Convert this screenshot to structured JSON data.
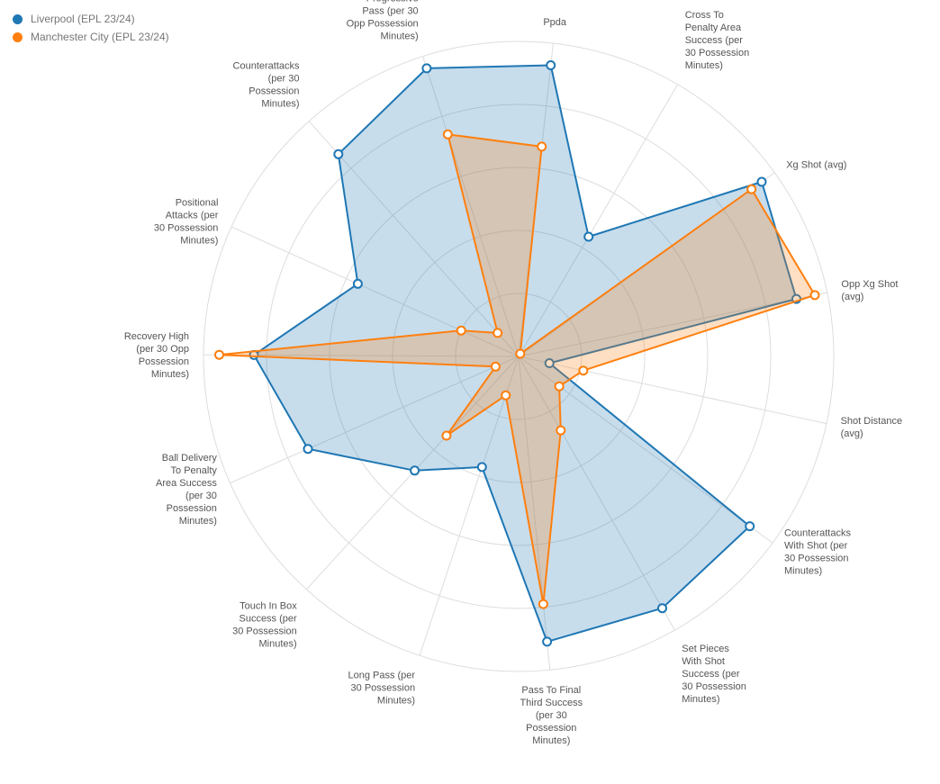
{
  "legend": {
    "items": [
      {
        "label": "Liverpool (EPL 23/24)",
        "color": "#1f77b4"
      },
      {
        "label": "Manchester City (EPL 23/24)",
        "color": "#ff7f0e"
      }
    ]
  },
  "chart_data": {
    "type": "radar",
    "title": "",
    "rlim": [
      0,
      100
    ],
    "grid": true,
    "legend_position": "top-left",
    "axes": [
      {
        "key": "ppda",
        "lines": [
          "Ppda"
        ]
      },
      {
        "key": "cross_to_penalty_area",
        "lines": [
          "Cross To",
          "Penalty Area",
          "Success (per",
          "30 Possession",
          "Minutes)"
        ]
      },
      {
        "key": "xg_shot",
        "lines": [
          "Xg Shot (avg)"
        ]
      },
      {
        "key": "opp_xg_shot",
        "lines": [
          "Opp Xg Shot",
          "(avg)"
        ]
      },
      {
        "key": "shot_distance",
        "lines": [
          "Shot Distance",
          "(avg)"
        ]
      },
      {
        "key": "counterattacks_with_shot",
        "lines": [
          "Counterattacks",
          "With Shot (per",
          "30 Possession",
          "Minutes)"
        ]
      },
      {
        "key": "set_pieces_with_shot",
        "lines": [
          "Set Pieces",
          "With Shot",
          "Success (per",
          "30 Possession",
          "Minutes)"
        ]
      },
      {
        "key": "pass_to_final_third",
        "lines": [
          "Pass To Final",
          "Third Success",
          "(per 30",
          "Possession",
          "Minutes)"
        ]
      },
      {
        "key": "long_pass",
        "lines": [
          "Long Pass (per",
          "30 Possession",
          "Minutes)"
        ]
      },
      {
        "key": "touch_in_box",
        "lines": [
          "Touch In Box",
          "Success (per",
          "30 Possession",
          "Minutes)"
        ]
      },
      {
        "key": "ball_delivery",
        "lines": [
          "Ball Delivery",
          "To Penalty",
          "Area Success",
          "(per 30",
          "Possession",
          "Minutes)"
        ]
      },
      {
        "key": "recovery_high",
        "lines": [
          "Recovery High",
          "(per 30 Opp",
          "Possession",
          "Minutes)"
        ]
      },
      {
        "key": "positional_attacks",
        "lines": [
          "Positional",
          "Attacks (per",
          "30 Possession",
          "Minutes)"
        ]
      },
      {
        "key": "counterattacks",
        "lines": [
          "Counterattacks",
          "(per 30",
          "Possession",
          "Minutes)"
        ]
      },
      {
        "key": "opp_progressive_pass",
        "lines": [
          "Opp",
          "Progressive",
          "Pass (per 30",
          "Opp Possession",
          "Minutes)"
        ]
      }
    ],
    "series": [
      {
        "name": "Liverpool (EPL 23/24)",
        "color": "#1f77b4",
        "values": [
          93,
          44,
          95,
          90,
          10,
          91,
          92,
          91,
          37,
          49,
          73,
          84,
          56,
          86,
          96
        ]
      },
      {
        "name": "Manchester City (EPL 23/24)",
        "color": "#ff7f0e",
        "values": [
          67,
          1,
          91,
          96,
          21,
          16,
          27,
          79,
          13,
          34,
          8,
          95,
          20,
          10,
          74
        ]
      }
    ]
  }
}
